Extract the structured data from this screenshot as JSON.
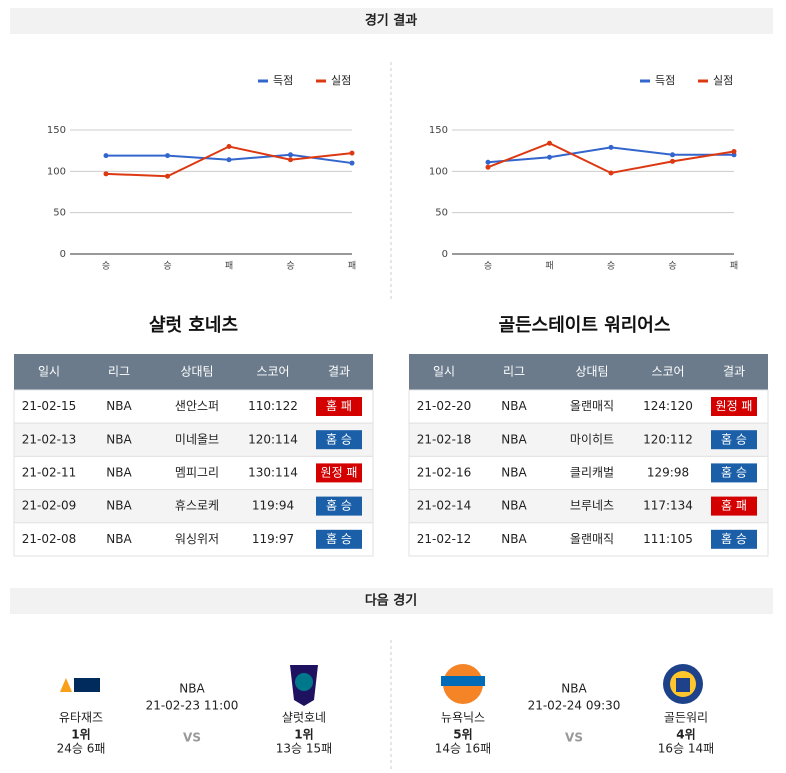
{
  "sections": [
    "경기 결과",
    "다음 경기"
  ],
  "chart_data": [
    {
      "type": "line",
      "categories": [
        "승",
        "승",
        "패",
        "승",
        "패"
      ],
      "series": [
        {
          "name": "득점",
          "color": "#3366cc",
          "values": [
            119,
            119,
            114,
            120,
            110
          ]
        },
        {
          "name": "실점",
          "color": "#dc3912",
          "values": [
            97,
            94,
            130,
            114,
            122
          ]
        }
      ],
      "ylim": [
        0,
        150
      ],
      "yticks": [
        0,
        50,
        100,
        150
      ],
      "grid": true,
      "legend": "top-right"
    },
    {
      "type": "line",
      "categories": [
        "승",
        "패",
        "승",
        "승",
        "패"
      ],
      "series": [
        {
          "name": "득점",
          "color": "#3366cc",
          "values": [
            111,
            117,
            129,
            120,
            120
          ]
        },
        {
          "name": "실점",
          "color": "#dc3912",
          "values": [
            105,
            134,
            98,
            112,
            124
          ]
        }
      ],
      "ylim": [
        0,
        150
      ],
      "yticks": [
        0,
        50,
        100,
        150
      ],
      "grid": true,
      "legend": "top-right"
    }
  ],
  "tables": [
    {
      "title": "샬럿 호네츠",
      "columns": [
        "일시",
        "리그",
        "상대팀",
        "스코어",
        "결과"
      ],
      "rows": [
        [
          "21-02-15",
          "NBA",
          "샌안스퍼",
          "110:122",
          "홈 패"
        ],
        [
          "21-02-13",
          "NBA",
          "미네올브",
          "120:114",
          "홈 승"
        ],
        [
          "21-02-11",
          "NBA",
          "멤피그리",
          "130:114",
          "원정 패"
        ],
        [
          "21-02-09",
          "NBA",
          "휴스로케",
          "119:94",
          "홈 승"
        ],
        [
          "21-02-08",
          "NBA",
          "워싱위저",
          "119:97",
          "홈 승"
        ]
      ],
      "result_colors": [
        "#d40000",
        "#1a5fa8",
        "#d40000",
        "#1a5fa8",
        "#1a5fa8"
      ]
    },
    {
      "title": "골든스테이트 워리어스",
      "columns": [
        "일시",
        "리그",
        "상대팀",
        "스코어",
        "결과"
      ],
      "rows": [
        [
          "21-02-20",
          "NBA",
          "올랜매직",
          "124:120",
          "원정 패"
        ],
        [
          "21-02-18",
          "NBA",
          "마이히트",
          "120:112",
          "홈 승"
        ],
        [
          "21-02-16",
          "NBA",
          "클리캐벌",
          "129:98",
          "홈 승"
        ],
        [
          "21-02-14",
          "NBA",
          "브루네츠",
          "117:134",
          "홈 패"
        ],
        [
          "21-02-12",
          "NBA",
          "올랜매직",
          "111:105",
          "홈 승"
        ]
      ],
      "result_colors": [
        "#d40000",
        "#1a5fa8",
        "#1a5fa8",
        "#d40000",
        "#1a5fa8"
      ]
    }
  ],
  "next_games": [
    {
      "league": "NBA",
      "datetime": "21-02-23 11:00",
      "vs": "VS",
      "home": {
        "name": "유타재즈",
        "rank": "1위",
        "record": "24승 6패"
      },
      "away": {
        "name": "샬럿호네",
        "rank": "1위",
        "record": "13승 15패"
      }
    },
    {
      "league": "NBA",
      "datetime": "21-02-24 09:30",
      "vs": "VS",
      "home": {
        "name": "뉴욕닉스",
        "rank": "5위",
        "record": "14승 16패"
      },
      "away": {
        "name": "골든워리",
        "rank": "4위",
        "record": "16승 14패"
      }
    }
  ]
}
